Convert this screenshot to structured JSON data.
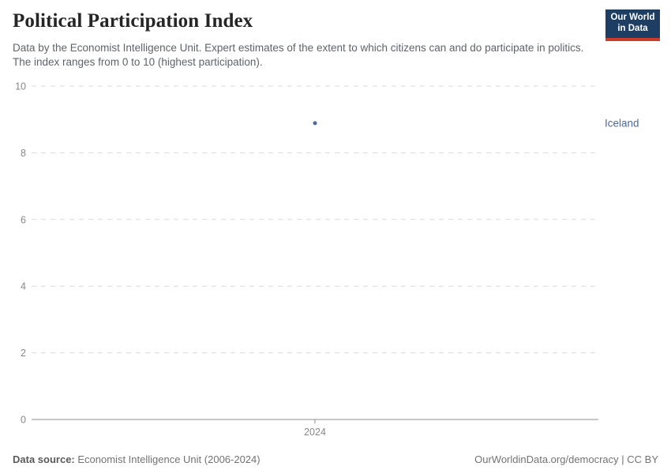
{
  "header": {
    "title": "Political Participation Index",
    "subtitle": "Data by the Economist Intelligence Unit. Expert estimates of the extent to which citizens can and do participate in politics. The index ranges from 0 to 10 (highest participation).",
    "logo": {
      "line1": "Our World",
      "line2": "in Data"
    }
  },
  "chart_data": {
    "type": "scatter",
    "title": "Political Participation Index",
    "x": [
      2024
    ],
    "xtick_labels": [
      "2024"
    ],
    "series": [
      {
        "name": "Iceland",
        "values": [
          8.89
        ]
      }
    ],
    "ylim": [
      0,
      10
    ],
    "yticks": [
      0,
      2,
      4,
      6,
      8,
      10
    ],
    "grid": "dashed-horizontal",
    "legend_position": "entity-label-right-of-plot"
  },
  "footer": {
    "source_label": "Data source:",
    "source_text": " Economist Intelligence Unit (2006-2024)",
    "rights": "OurWorldinData.org/democracy | CC BY"
  },
  "colors": {
    "accent": "#4c6a9c",
    "grid": "#d9d9d9",
    "axis": "#8f8f8f",
    "tick_text": "#888888",
    "logo_bg": "#1d3d63",
    "logo_red": "#cb3b31"
  }
}
